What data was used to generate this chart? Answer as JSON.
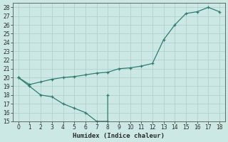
{
  "line1_x": [
    0,
    1,
    2,
    3,
    4,
    5,
    6,
    7,
    8,
    9,
    10,
    11,
    12,
    13,
    14,
    15,
    16,
    17,
    18
  ],
  "line1_y": [
    20,
    19.2,
    19.5,
    19.8,
    20.0,
    20.1,
    20.3,
    20.5,
    20.6,
    21.0,
    21.1,
    21.3,
    21.6,
    24.3,
    26.0,
    27.3,
    27.5,
    28.0,
    27.5
  ],
  "line2_x": [
    0,
    1,
    2,
    3,
    4,
    5,
    6,
    7,
    8,
    8
  ],
  "line2_y": [
    20.0,
    19.0,
    18.0,
    17.8,
    17.0,
    16.5,
    16.0,
    15.0,
    15.0,
    18.0
  ],
  "color": "#2e7d6e",
  "bg_color": "#cce8e4",
  "grid_color": "#aacfcb",
  "xlabel": "Humidex (Indice chaleur)",
  "ylim": [
    15,
    28.5
  ],
  "xlim": [
    -0.5,
    18.5
  ],
  "yticks": [
    15,
    16,
    17,
    18,
    19,
    20,
    21,
    22,
    23,
    24,
    25,
    26,
    27,
    28
  ],
  "xticks": [
    0,
    1,
    2,
    3,
    4,
    5,
    6,
    7,
    8,
    9,
    10,
    11,
    12,
    13,
    14,
    15,
    16,
    17,
    18
  ],
  "tick_fontsize": 5.5,
  "xlabel_fontsize": 6.5
}
